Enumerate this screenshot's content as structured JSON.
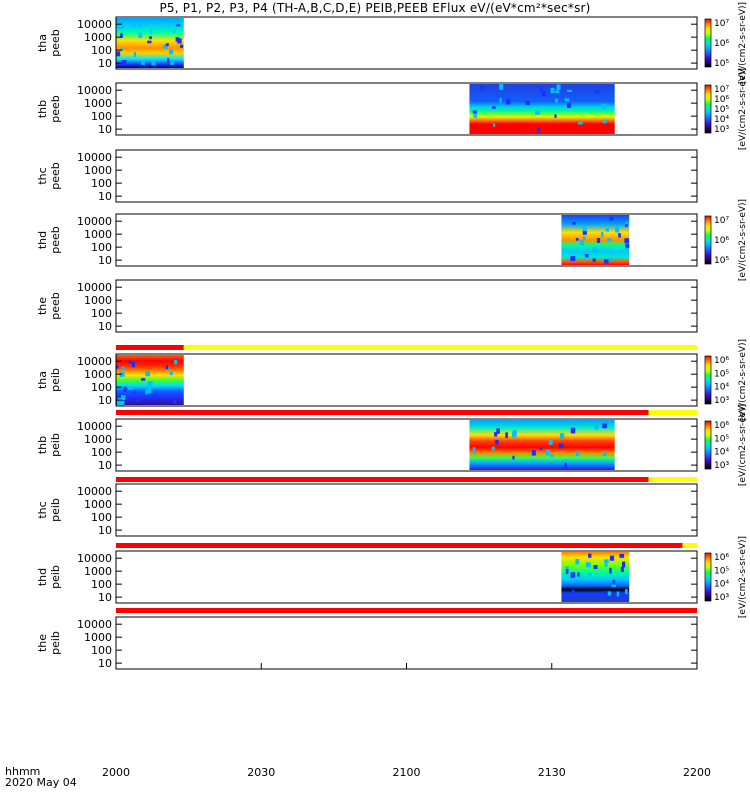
{
  "title": "P5, P1, P2, P3, P4 (TH-A,B,C,D,E) PEIB,PEEB EFlux eV/(eV*cm²*sec*sr)",
  "time_axis": {
    "row_label": "hhmm",
    "date_label": "2020 May 04",
    "tick_labels": [
      "2000",
      "2030",
      "2100",
      "2130",
      "2200"
    ]
  },
  "colorbar_label": "[eV/(cm2-s-sr-eV)]",
  "chart_data": [
    {
      "type": "heatmap",
      "probe": "tha",
      "ylabel": [
        "tha",
        "peeb"
      ],
      "yticks": [
        "10",
        "100",
        "1000",
        "10000"
      ],
      "ylog": true,
      "xlim": [
        "2000",
        "2200"
      ],
      "data_span": [
        "2000",
        "2014"
      ],
      "colorbar_ticks": [
        "10⁵",
        "10⁶",
        "10⁷"
      ],
      "has_colorbar": true
    },
    {
      "type": "heatmap",
      "probe": "thb",
      "ylabel": [
        "thb",
        "peeb"
      ],
      "yticks": [
        "10",
        "100",
        "1000",
        "10000"
      ],
      "ylog": true,
      "xlim": [
        "2000",
        "2200"
      ],
      "data_span": [
        "2113",
        "2143"
      ],
      "colorbar_ticks": [
        "10³",
        "10⁴",
        "10⁵",
        "10⁶",
        "10⁷"
      ],
      "has_colorbar": true
    },
    {
      "type": "heatmap",
      "probe": "thc",
      "ylabel": [
        "thc",
        "peeb"
      ],
      "yticks": [
        "10",
        "100",
        "1000",
        "10000"
      ],
      "ylog": true,
      "xlim": [
        "2000",
        "2200"
      ],
      "data_span": null,
      "has_colorbar": false
    },
    {
      "type": "heatmap",
      "probe": "thd",
      "ylabel": [
        "thd",
        "peeb"
      ],
      "yticks": [
        "10",
        "100",
        "1000",
        "10000"
      ],
      "ylog": true,
      "xlim": [
        "2000",
        "2200"
      ],
      "data_span": [
        "2132",
        "2146"
      ],
      "colorbar_ticks": [
        "10⁵",
        "10⁶",
        "10⁷"
      ],
      "has_colorbar": true
    },
    {
      "type": "heatmap",
      "probe": "the",
      "ylabel": [
        "the",
        "peeb"
      ],
      "yticks": [
        "10",
        "100",
        "1000",
        "10000"
      ],
      "ylog": true,
      "xlim": [
        "2000",
        "2200"
      ],
      "data_span": null,
      "has_colorbar": false
    },
    {
      "type": "heatmap",
      "probe": "tha",
      "ylabel": [
        "tha",
        "peib"
      ],
      "yticks": [
        "10",
        "100",
        "1000",
        "10000"
      ],
      "ylog": true,
      "xlim": [
        "2000",
        "2200"
      ],
      "data_span": [
        "2000",
        "2014"
      ],
      "colorbar_ticks": [
        "10³",
        "10⁴",
        "10⁵",
        "10⁶"
      ],
      "has_colorbar": true
    },
    {
      "type": "heatmap",
      "probe": "thb",
      "ylabel": [
        "thb",
        "peib"
      ],
      "yticks": [
        "10",
        "100",
        "1000",
        "10000"
      ],
      "ylog": true,
      "xlim": [
        "2000",
        "2200"
      ],
      "data_span": [
        "2113",
        "2143"
      ],
      "colorbar_ticks": [
        "10³",
        "10⁴",
        "10⁵",
        "10⁶"
      ],
      "has_colorbar": true
    },
    {
      "type": "heatmap",
      "probe": "thc",
      "ylabel": [
        "thc",
        "peib"
      ],
      "yticks": [
        "10",
        "100",
        "1000",
        "10000"
      ],
      "ylog": true,
      "xlim": [
        "2000",
        "2200"
      ],
      "data_span": null,
      "has_colorbar": false
    },
    {
      "type": "heatmap",
      "probe": "thd",
      "ylabel": [
        "thd",
        "peib"
      ],
      "yticks": [
        "10",
        "100",
        "1000",
        "10000"
      ],
      "ylog": true,
      "xlim": [
        "2000",
        "2200"
      ],
      "data_span": [
        "2132",
        "2146"
      ],
      "colorbar_ticks": [
        "10³",
        "10⁴",
        "10⁵",
        "10⁶"
      ],
      "has_colorbar": true
    },
    {
      "type": "heatmap",
      "probe": "the",
      "ylabel": [
        "the",
        "peib"
      ],
      "yticks": [
        "10",
        "100",
        "1000",
        "10000"
      ],
      "ylog": true,
      "xlim": [
        "2000",
        "2200"
      ],
      "data_span": null,
      "has_colorbar": false
    }
  ],
  "status_bars": [
    {
      "segments": [
        {
          "from": "2000",
          "to": "2014",
          "color": "#ff0000"
        },
        {
          "from": "2014",
          "to": "2200",
          "color": "#ffff00"
        }
      ]
    },
    {
      "segments": [
        {
          "from": "2000",
          "to": "2150",
          "color": "#ff0000"
        },
        {
          "from": "2150",
          "to": "2200",
          "color": "#ffff00"
        }
      ]
    },
    {
      "segments": [
        {
          "from": "2000",
          "to": "2150",
          "color": "#ff0000"
        },
        {
          "from": "2150",
          "to": "2200",
          "color": "#ffff00"
        }
      ]
    },
    {
      "segments": [
        {
          "from": "2000",
          "to": "2157",
          "color": "#ff0000"
        },
        {
          "from": "2157",
          "to": "2200",
          "color": "#ffff00"
        }
      ]
    },
    {
      "segments": [
        {
          "from": "2000",
          "to": "2200",
          "color": "#ff0000"
        }
      ]
    }
  ],
  "colors": {
    "colormap": [
      "#000000",
      "#30006a",
      "#3a14e0",
      "#1e66ff",
      "#00b4ff",
      "#00e8d0",
      "#10ff40",
      "#c8ff00",
      "#ffe000",
      "#ff8000",
      "#ff0000"
    ],
    "frame": "#000000",
    "status_red": "#ff0000",
    "status_yellow": "#ffff00"
  }
}
